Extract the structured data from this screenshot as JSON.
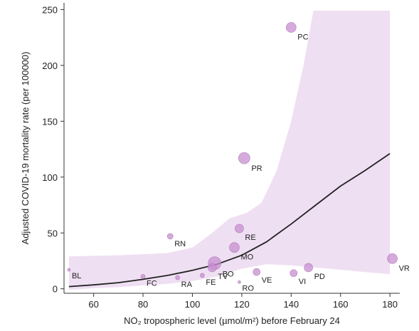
{
  "chart_data": {
    "type": "scatter",
    "xlabel": "NO₂ tropospheric level (µmol/m²) before February 24",
    "ylabel": "Adjusted COVID-19 mortality rate (per 100000)",
    "xlim": [
      48,
      184
    ],
    "ylim": [
      -4,
      256
    ],
    "x_ticks": [
      60,
      80,
      100,
      120,
      140,
      160,
      180
    ],
    "y_ticks": [
      0,
      50,
      100,
      150,
      200,
      250
    ],
    "grid": false,
    "legend": "none",
    "colors": {
      "points": "#c78fd0",
      "band": "#efdff2",
      "curve": "#222222"
    },
    "points": [
      {
        "label": "PC",
        "x": 140,
        "y": 234,
        "size": 7
      },
      {
        "label": "PR",
        "x": 121,
        "y": 117,
        "size": 8
      },
      {
        "label": "RE",
        "x": 119,
        "y": 54,
        "size": 6
      },
      {
        "label": "RN",
        "x": 91,
        "y": 47,
        "size": 4
      },
      {
        "label": "MO",
        "x": 117,
        "y": 37,
        "size": 7
      },
      {
        "label": "BO",
        "x": 109,
        "y": 23,
        "size": 9
      },
      {
        "label": "TV",
        "x": 108,
        "y": 19,
        "size": 6
      },
      {
        "label": "FE",
        "x": 104,
        "y": 12,
        "size": 3
      },
      {
        "label": "VE",
        "x": 126,
        "y": 15,
        "size": 5
      },
      {
        "label": "RO",
        "x": 119,
        "y": 6,
        "size": 2
      },
      {
        "label": "VI",
        "x": 141,
        "y": 14,
        "size": 5
      },
      {
        "label": "PD",
        "x": 147,
        "y": 19,
        "size": 6
      },
      {
        "label": "VR",
        "x": 181,
        "y": 27,
        "size": 7
      },
      {
        "label": "BL",
        "x": 50,
        "y": 17,
        "size": 2
      },
      {
        "label": "FC",
        "x": 80,
        "y": 11,
        "size": 3
      },
      {
        "label": "RA",
        "x": 94,
        "y": 10,
        "size": 3
      }
    ],
    "fit_curve": [
      {
        "x": 50,
        "y": 2
      },
      {
        "x": 60,
        "y": 3.5
      },
      {
        "x": 70,
        "y": 5.5
      },
      {
        "x": 80,
        "y": 8.5
      },
      {
        "x": 90,
        "y": 12
      },
      {
        "x": 100,
        "y": 16.5
      },
      {
        "x": 110,
        "y": 22
      },
      {
        "x": 120,
        "y": 30
      },
      {
        "x": 130,
        "y": 42
      },
      {
        "x": 140,
        "y": 58
      },
      {
        "x": 150,
        "y": 75
      },
      {
        "x": 160,
        "y": 92
      },
      {
        "x": 170,
        "y": 106
      },
      {
        "x": 180,
        "y": 121
      }
    ],
    "band_upper": [
      {
        "x": 50,
        "y": 29
      },
      {
        "x": 70,
        "y": 30
      },
      {
        "x": 90,
        "y": 32
      },
      {
        "x": 100,
        "y": 37
      },
      {
        "x": 108,
        "y": 50
      },
      {
        "x": 115,
        "y": 63
      },
      {
        "x": 122,
        "y": 68
      },
      {
        "x": 128,
        "y": 77
      },
      {
        "x": 134,
        "y": 105
      },
      {
        "x": 140,
        "y": 150
      },
      {
        "x": 145,
        "y": 200
      },
      {
        "x": 149,
        "y": 249
      },
      {
        "x": 180,
        "y": 249
      }
    ],
    "band_lower": [
      {
        "x": 180,
        "y": 13
      },
      {
        "x": 170,
        "y": 15
      },
      {
        "x": 160,
        "y": 17
      },
      {
        "x": 150,
        "y": 19
      },
      {
        "x": 140,
        "y": 21
      },
      {
        "x": 130,
        "y": 22
      },
      {
        "x": 120,
        "y": 18
      },
      {
        "x": 110,
        "y": 11
      },
      {
        "x": 100,
        "y": 7
      },
      {
        "x": 90,
        "y": 4.5
      },
      {
        "x": 80,
        "y": 3
      },
      {
        "x": 70,
        "y": 1.5
      },
      {
        "x": 60,
        "y": 0.5
      },
      {
        "x": 50,
        "y": -1
      }
    ]
  }
}
